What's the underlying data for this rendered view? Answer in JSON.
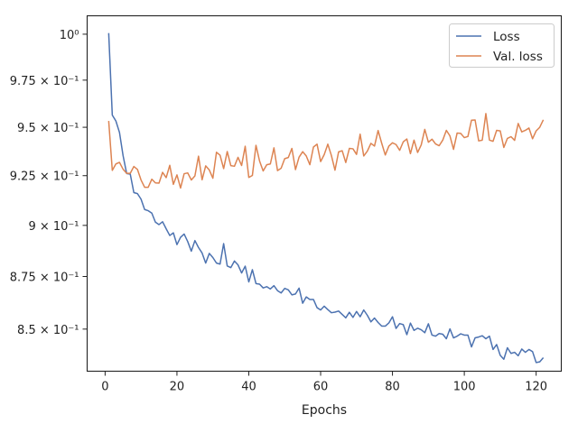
{
  "chart_data": {
    "type": "line",
    "xlabel": "Epochs",
    "ylabel": "",
    "xlim": [
      -5,
      127
    ],
    "ylim": [
      0.8305,
      1.0102
    ],
    "y_scale": "log",
    "grid": false,
    "legend_position": "top-right",
    "x_ticks": [
      0,
      20,
      40,
      60,
      80,
      100,
      120
    ],
    "x_tick_labels": [
      "0",
      "20",
      "40",
      "60",
      "80",
      "100",
      "120"
    ],
    "y_ticks": [
      1.0,
      0.975,
      0.95,
      0.925,
      0.9,
      0.875,
      0.85
    ],
    "y_tick_labels": [
      "10⁰",
      "9.75 × 10⁻¹",
      "9.5 × 10⁻¹",
      "9.25 × 10⁻¹",
      "9 × 10⁻¹",
      "8.75 × 10⁻¹",
      "8.5 × 10⁻¹"
    ],
    "series": [
      {
        "name": "Loss",
        "color": "#4c72b0",
        "x": [
          1,
          2,
          3,
          4,
          5,
          6,
          7,
          8,
          9,
          10,
          11,
          12,
          13,
          14,
          15,
          16,
          17,
          18,
          19,
          20,
          21,
          22,
          23,
          24,
          25,
          26,
          27,
          28,
          29,
          30,
          31,
          32,
          33,
          34,
          35,
          36,
          37,
          38,
          39,
          40,
          41,
          42,
          43,
          44,
          45,
          46,
          47,
          48,
          49,
          50,
          51,
          52,
          53,
          54,
          55,
          56,
          57,
          58,
          59,
          60,
          61,
          62,
          63,
          64,
          65,
          66,
          67,
          68,
          69,
          70,
          71,
          72,
          73,
          74,
          75,
          76,
          77,
          78,
          79,
          80,
          81,
          82,
          83,
          84,
          85,
          86,
          87,
          88,
          89,
          90,
          91,
          92,
          93,
          94,
          95,
          96,
          97,
          98,
          99,
          100,
          101,
          102,
          103,
          104,
          105,
          106,
          107,
          108,
          109,
          110,
          111,
          112,
          113,
          114,
          115,
          116,
          117,
          118,
          119,
          120,
          121,
          122
        ],
        "values": [
          1.0006,
          0.9564,
          0.9533,
          0.9473,
          0.9353,
          0.9261,
          0.9258,
          0.9164,
          0.9159,
          0.9131,
          0.9079,
          0.9073,
          0.9061,
          0.9016,
          0.9004,
          0.9018,
          0.8983,
          0.895,
          0.8963,
          0.8905,
          0.8941,
          0.8957,
          0.892,
          0.8873,
          0.8925,
          0.8891,
          0.8864,
          0.8815,
          0.8862,
          0.8842,
          0.8815,
          0.881,
          0.891,
          0.8801,
          0.8793,
          0.8825,
          0.8806,
          0.8767,
          0.88,
          0.8724,
          0.8783,
          0.8716,
          0.8713,
          0.8695,
          0.8701,
          0.869,
          0.8706,
          0.8682,
          0.8671,
          0.8693,
          0.8686,
          0.8662,
          0.8666,
          0.8694,
          0.8622,
          0.8652,
          0.864,
          0.864,
          0.8601,
          0.859,
          0.8608,
          0.8592,
          0.8577,
          0.858,
          0.8585,
          0.8569,
          0.8553,
          0.8579,
          0.8555,
          0.8583,
          0.8558,
          0.859,
          0.8565,
          0.8534,
          0.8552,
          0.8531,
          0.8514,
          0.8514,
          0.8529,
          0.8558,
          0.8503,
          0.8526,
          0.8521,
          0.8474,
          0.8528,
          0.8494,
          0.8504,
          0.8497,
          0.8483,
          0.8525,
          0.8472,
          0.8467,
          0.8479,
          0.8476,
          0.8455,
          0.8501,
          0.8459,
          0.8467,
          0.8478,
          0.8472,
          0.8472,
          0.8417,
          0.8459,
          0.8463,
          0.8469,
          0.8455,
          0.8467,
          0.8405,
          0.8428,
          0.8378,
          0.836,
          0.8413,
          0.8387,
          0.8392,
          0.8376,
          0.8407,
          0.8392,
          0.8405,
          0.8395,
          0.8345,
          0.8348,
          0.8367
        ]
      },
      {
        "name": "Val. loss",
        "color": "#dd8452",
        "x": [
          1,
          2,
          3,
          4,
          5,
          6,
          7,
          8,
          9,
          10,
          11,
          12,
          13,
          14,
          15,
          16,
          17,
          18,
          19,
          20,
          21,
          22,
          23,
          24,
          25,
          26,
          27,
          28,
          29,
          30,
          31,
          32,
          33,
          34,
          35,
          36,
          37,
          38,
          39,
          40,
          41,
          42,
          43,
          44,
          45,
          46,
          47,
          48,
          49,
          50,
          51,
          52,
          53,
          54,
          55,
          56,
          57,
          58,
          59,
          60,
          61,
          62,
          63,
          64,
          65,
          66,
          67,
          68,
          69,
          70,
          71,
          72,
          73,
          74,
          75,
          76,
          77,
          78,
          79,
          80,
          81,
          82,
          83,
          84,
          85,
          86,
          87,
          88,
          89,
          90,
          91,
          92,
          93,
          94,
          95,
          96,
          97,
          98,
          99,
          100,
          101,
          102,
          103,
          104,
          105,
          106,
          107,
          108,
          109,
          110,
          111,
          112,
          113,
          114,
          115,
          116,
          117,
          118,
          119,
          120,
          121,
          122
        ],
        "values": [
          0.9533,
          0.9277,
          0.931,
          0.9318,
          0.9283,
          0.9262,
          0.9262,
          0.9297,
          0.9282,
          0.9228,
          0.9191,
          0.9191,
          0.9232,
          0.9213,
          0.9212,
          0.9267,
          0.924,
          0.9303,
          0.9206,
          0.9254,
          0.9187,
          0.926,
          0.9264,
          0.9228,
          0.9249,
          0.935,
          0.9229,
          0.93,
          0.9279,
          0.9237,
          0.937,
          0.9355,
          0.9286,
          0.9374,
          0.9301,
          0.9298,
          0.9344,
          0.9302,
          0.9401,
          0.9241,
          0.9251,
          0.9406,
          0.9325,
          0.9274,
          0.9306,
          0.931,
          0.9393,
          0.9276,
          0.9288,
          0.9337,
          0.9343,
          0.939,
          0.9281,
          0.9345,
          0.9373,
          0.9351,
          0.9306,
          0.9397,
          0.9412,
          0.9322,
          0.9358,
          0.9412,
          0.9353,
          0.9278,
          0.9372,
          0.9378,
          0.9317,
          0.939,
          0.9388,
          0.9359,
          0.9464,
          0.9351,
          0.9376,
          0.9416,
          0.9402,
          0.9483,
          0.9417,
          0.9356,
          0.9402,
          0.9419,
          0.941,
          0.938,
          0.9424,
          0.9439,
          0.9363,
          0.9433,
          0.9369,
          0.9408,
          0.9489,
          0.9422,
          0.9438,
          0.9413,
          0.9404,
          0.9433,
          0.9484,
          0.9455,
          0.9385,
          0.947,
          0.9468,
          0.9446,
          0.9452,
          0.9537,
          0.9538,
          0.9429,
          0.9433,
          0.9572,
          0.9433,
          0.9427,
          0.9484,
          0.9481,
          0.9395,
          0.9442,
          0.9451,
          0.9432,
          0.952,
          0.9476,
          0.9484,
          0.9496,
          0.944,
          0.9481,
          0.95,
          0.9539
        ]
      }
    ]
  }
}
